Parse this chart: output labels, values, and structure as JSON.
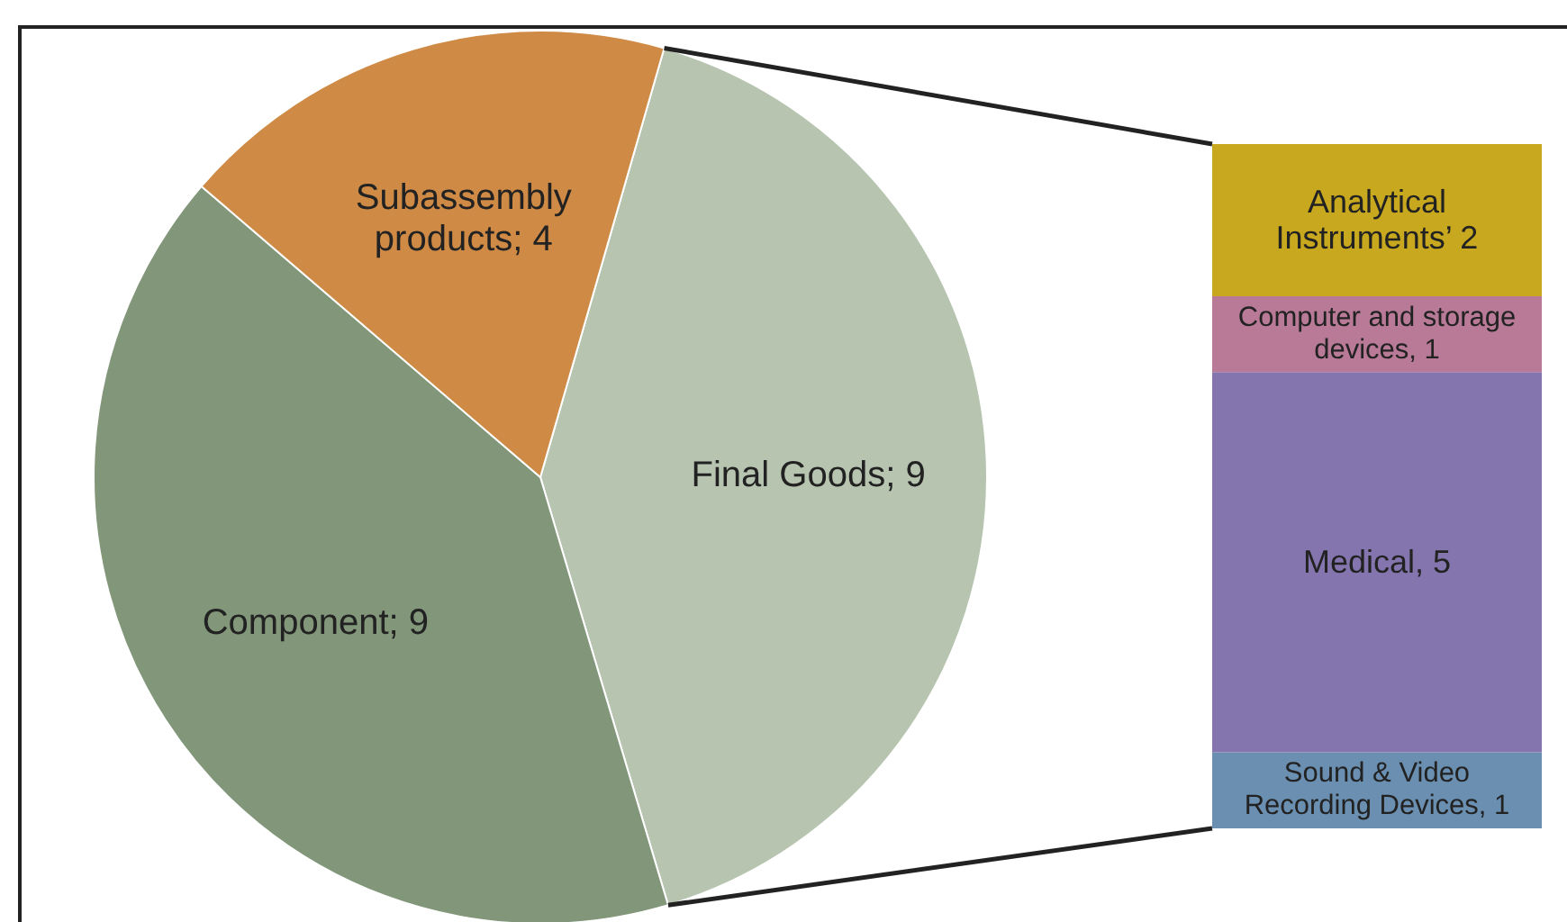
{
  "chart_data": [
    {
      "type": "pie",
      "categories": [
        "Final Goods",
        "Component",
        "Subassembly products"
      ],
      "values": [
        9,
        9,
        4
      ],
      "colors": [
        "#b7c4b0",
        "#82967a",
        "#cf8a45"
      ],
      "value_labels": [
        "; 9",
        "; 9",
        "; 4"
      ],
      "legend": false
    },
    {
      "type": "bar",
      "stacked": true,
      "categories": [
        null
      ],
      "legend": false,
      "series": [
        {
          "name": "Sound & Video Recording Devices",
          "color": "#6a8fb0",
          "values": [
            1
          ],
          "value_labels": [
            ", 1"
          ]
        },
        {
          "name": "Medical",
          "color": "#8475ae",
          "values": [
            5
          ],
          "value_labels": [
            ", 5"
          ]
        },
        {
          "name": "Computer and storage devices",
          "color": "#b87a96",
          "values": [
            1
          ],
          "value_labels": [
            ", 1"
          ]
        },
        {
          "name": "Analytical Instruments",
          "color": "#c8a81e",
          "values": [
            2
          ],
          "value_labels": [
            "’ 2"
          ]
        }
      ]
    }
  ]
}
